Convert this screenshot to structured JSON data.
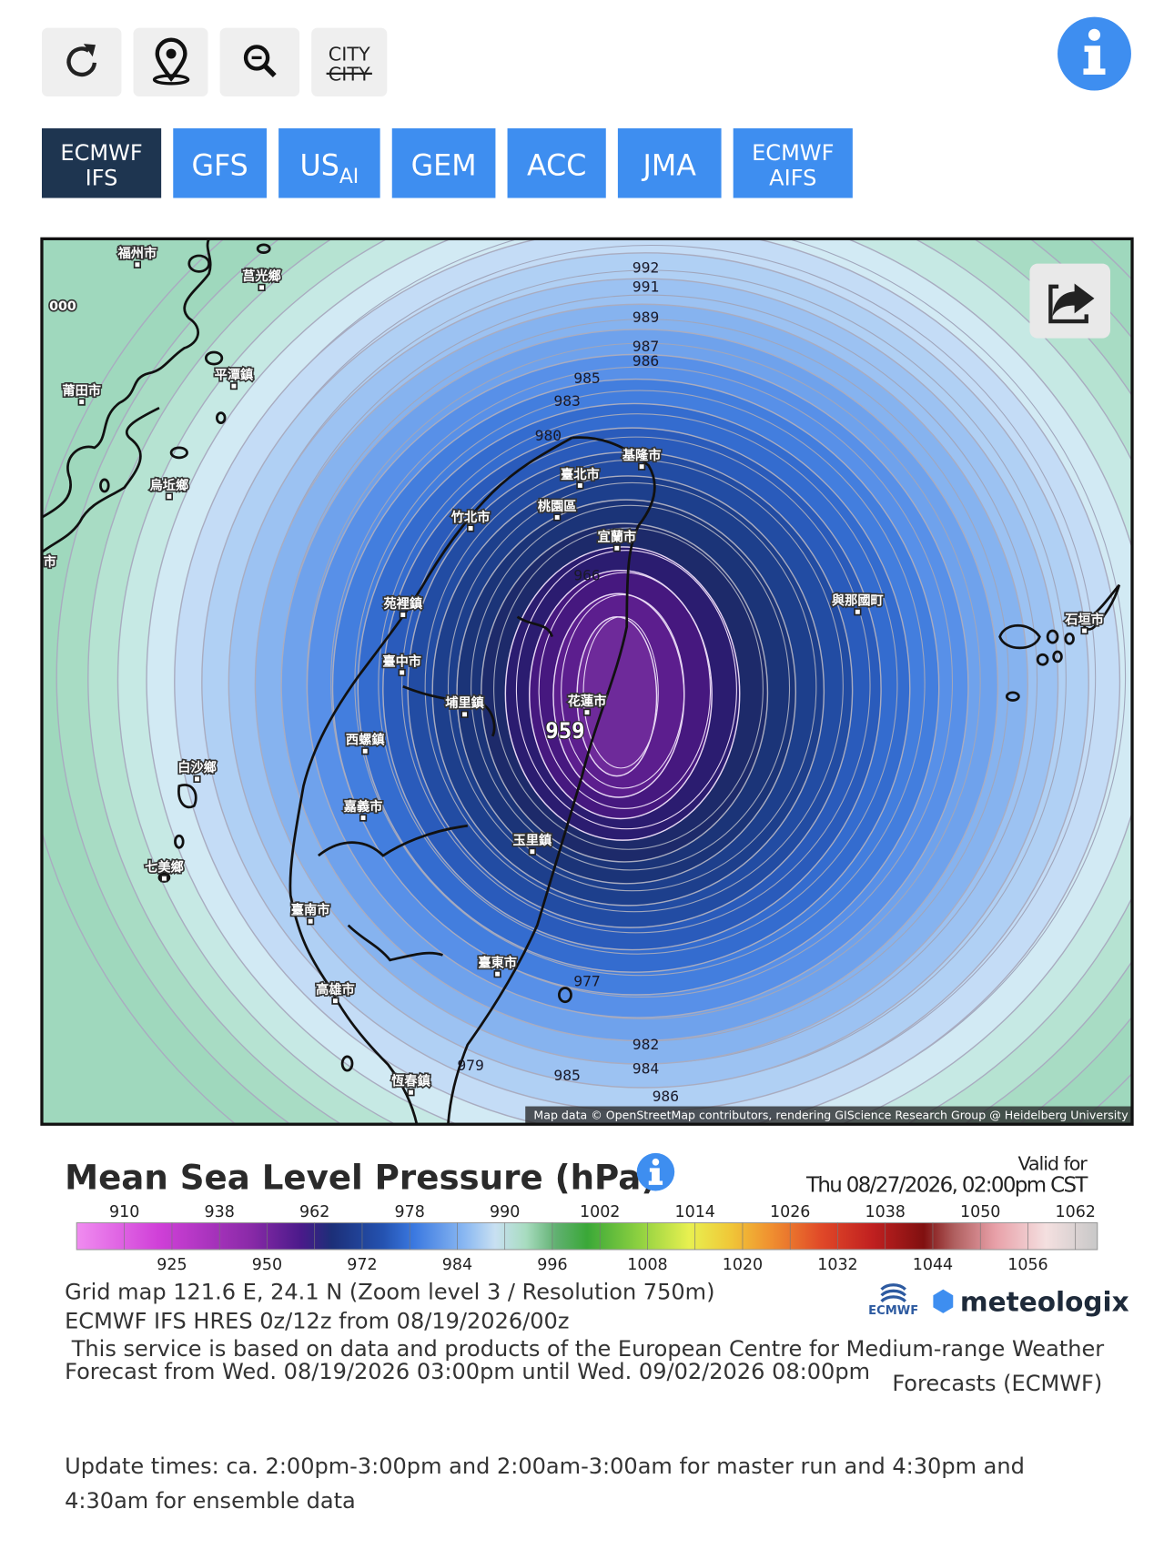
{
  "toolbar": {
    "city_label": "CITY",
    "city_label_struck": "CITY"
  },
  "model_tabs": [
    {
      "lines": [
        "ECMWF",
        "IFS"
      ],
      "active": true
    },
    {
      "lines": [
        "GFS"
      ],
      "active": false
    },
    {
      "lines": [
        "US"
      ],
      "sub": "AI",
      "active": false
    },
    {
      "lines": [
        "GEM"
      ],
      "active": false
    },
    {
      "lines": [
        "ACC"
      ],
      "active": false
    },
    {
      "lines": [
        "JMA"
      ],
      "active": false
    },
    {
      "lines": [
        "ECMWF",
        "AIFS"
      ],
      "active": false
    }
  ],
  "map": {
    "contour_labels": [
      992,
      991,
      989,
      987,
      986,
      985,
      983,
      980,
      966,
      959,
      977,
      982,
      984,
      985,
      979,
      986
    ],
    "cities": [
      "000",
      "福州市",
      "莒光鄉",
      "莆田市",
      "平潭鎮",
      "烏坵鄉",
      "市",
      "基隆市",
      "臺北市",
      "桃園區",
      "竹北市",
      "宜蘭市",
      "苑裡鎮",
      "臺中市",
      "埔里鎮",
      "花蓮市",
      "西螺鎮",
      "白沙鄉",
      "嘉義市",
      "七美鄉",
      "玉里鎮",
      "臺南市",
      "臺東市",
      "高雄市",
      "與那國町",
      "石垣市",
      "恆春鎮"
    ],
    "attribution": "Map data © OpenStreetMap contributors, rendering GIScience Research Group @ Heidelberg University"
  },
  "legend": {
    "title": "Mean Sea Level Pressure (hPa)",
    "valid_label": "Valid for",
    "valid_time": "Thu 08/27/2026, 02:00pm CST",
    "scale_labels": [
      910,
      925,
      938,
      950,
      962,
      972,
      978,
      984,
      990,
      996,
      1002,
      1008,
      1014,
      1020,
      1026,
      1032,
      1038,
      1044,
      1050,
      1056,
      1062
    ]
  },
  "info": {
    "grid": "Grid map 121.6 E, 24.1 N (Zoom level 3 / Resolution 750m)",
    "run": "ECMWF IFS HRES 0z/12z from 08/19/2026/00z",
    "service_line": " This service is based on data and products of the European Centre for Medium-range Weather",
    "forecast_range": "Forecast from Wed. 08/19/2026 03:00pm until Wed. 09/02/2026 08:00pm",
    "service_tail": "Forecasts (ECMWF)"
  },
  "logos": {
    "ecmwf": "ECMWF",
    "brand": "meteologix"
  },
  "update_note": [
    "Update times: ca. 2:00pm-3:00pm and 2:00am-3:00am for master run and 4:30pm and",
    "4:30am for ensemble data"
  ]
}
